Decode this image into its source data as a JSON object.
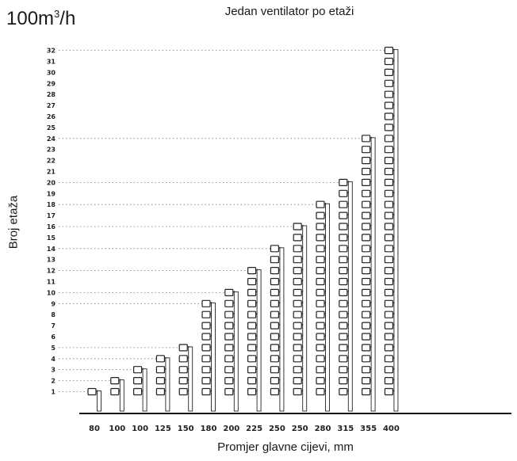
{
  "header": {
    "flow_number": "100m",
    "flow_sup": "3",
    "flow_unit": "/h",
    "title": "Jedan ventilator po etaži"
  },
  "chart_data": {
    "type": "bar",
    "title": "Jedan ventilator po etaži",
    "xlabel": "Promjer glavne cijevi, mm",
    "ylabel": "Broj etaža",
    "categories": [
      "80",
      "100",
      "100",
      "125",
      "150",
      "180",
      "200",
      "225",
      "250",
      "250",
      "280",
      "315",
      "355",
      "400"
    ],
    "values": [
      1,
      2,
      3,
      4,
      5,
      9,
      10,
      12,
      14,
      16,
      18,
      20,
      24,
      32
    ],
    "ylim": [
      0,
      32
    ],
    "yticks": [
      1,
      2,
      3,
      4,
      5,
      6,
      7,
      8,
      9,
      10,
      11,
      12,
      13,
      14,
      15,
      16,
      17,
      18,
      19,
      20,
      21,
      22,
      23,
      24,
      25,
      26,
      27,
      28,
      29,
      30,
      31,
      32
    ],
    "gridlines_at": [
      1,
      2,
      3,
      4,
      5,
      9,
      10,
      12,
      14,
      16,
      18,
      20,
      24,
      32
    ],
    "grid": "dotted horizontal lines at column tops",
    "mark_color": "#222222"
  }
}
